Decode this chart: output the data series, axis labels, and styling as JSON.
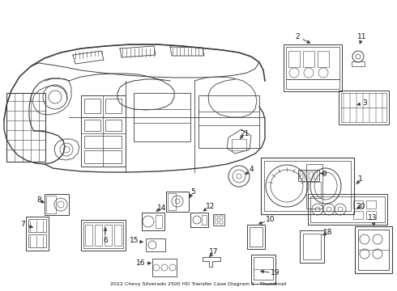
{
  "bg_color": "#ffffff",
  "line_color": "#404040",
  "text_color": "#111111",
  "title": "2022 Chevy Silverado 2500 HD Transfer Case Diagram 1 - Thumbnail",
  "figw": 4.9,
  "figh": 3.6,
  "dpi": 100
}
